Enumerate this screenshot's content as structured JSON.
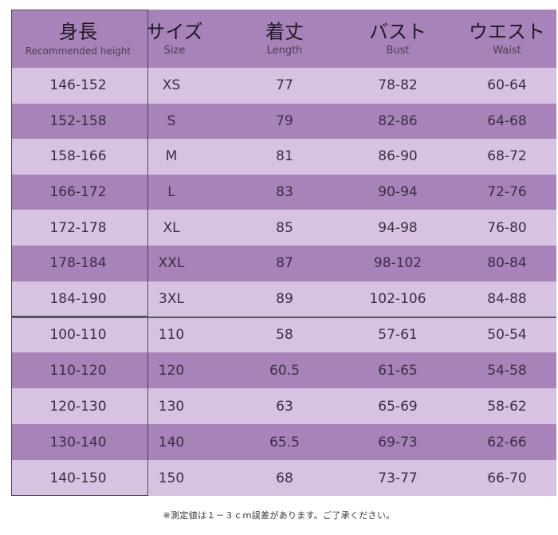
{
  "headers": [
    {
      "main": "身長",
      "sub": "Recommended height"
    },
    {
      "main": "サイズ",
      "sub": "Size"
    },
    {
      "main": "着丈",
      "sub": "Length"
    },
    {
      "main": "バスト",
      "sub": "Bust"
    },
    {
      "main": "ウエスト",
      "sub": "Waist"
    }
  ],
  "adult_rows": [
    [
      "146-152",
      "XS",
      "77",
      "78-82",
      "60-64"
    ],
    [
      "152-158",
      "S",
      "79",
      "82-86",
      "64-68"
    ],
    [
      "158-166",
      "M",
      "81",
      "86-90",
      "68-72"
    ],
    [
      "166-172",
      "L",
      "83",
      "90-94",
      "72-76"
    ],
    [
      "172-178",
      "XL",
      "85",
      "94-98",
      "76-80"
    ],
    [
      "178-184",
      "XXL",
      "87",
      "98-102",
      "80-84"
    ],
    [
      "184-190",
      "3XL",
      "89",
      "102-106",
      "84-88"
    ]
  ],
  "kids_rows": [
    [
      "100-110",
      "110",
      "58",
      "57-61",
      "50-54"
    ],
    [
      "110-120",
      "120",
      "60.5",
      "61-65",
      "54-58"
    ],
    [
      "120-130",
      "130",
      "63",
      "65-69",
      "58-62"
    ],
    [
      "130-140",
      "140",
      "65.5",
      "69-73",
      "62-66"
    ],
    [
      "140-150",
      "150",
      "68",
      "73-77",
      "66-70"
    ]
  ],
  "footnote": "※測定値は１－３ｃｍ誤差があります。ご了承ください。",
  "colors": {
    "dark_row": "#a783b9",
    "light_row": "#d7c3e1"
  }
}
